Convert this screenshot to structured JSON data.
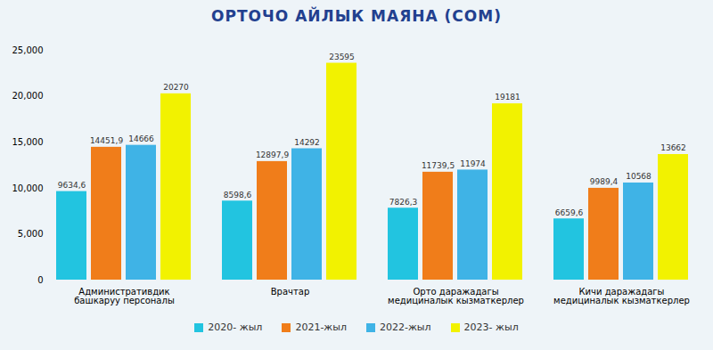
{
  "chart_data": {
    "type": "bar",
    "title": "ОРТОЧО АЙЛЫК МАЯНА (СОМ)",
    "categories": [
      "Административдик башкаруу персоналы",
      "Врачтар",
      "Орто даражадагы медициналык кызматкерлер",
      "Кичи даражадагы медициналык кызматкерлер"
    ],
    "series": [
      {
        "name": "2020- жыл",
        "color": "#22c4e0",
        "values": [
          9634.6,
          8598.6,
          7826.3,
          6659.6
        ],
        "value_labels": [
          "9634,6",
          "8598,6",
          "7826,3",
          "6659,6"
        ]
      },
      {
        "name": "2021-жыл",
        "color": "#f07d1a",
        "values": [
          14451.9,
          12897.9,
          11739.5,
          9989.4
        ],
        "value_labels": [
          "14451,9",
          "12897,9",
          "11739,5",
          "9989,4"
        ]
      },
      {
        "name": "2022-жыл",
        "color": "#3fb3e6",
        "values": [
          14666,
          14292,
          11974,
          10568
        ],
        "value_labels": [
          "14666",
          "14292",
          "11974",
          "10568"
        ]
      },
      {
        "name": "2023- жыл",
        "color": "#f2f200",
        "values": [
          20270,
          23595,
          19181,
          13662
        ],
        "value_labels": [
          "20270",
          "23595",
          "19181",
          "13662"
        ]
      }
    ],
    "ylim": [
      0,
      25000
    ],
    "yticks": [
      0,
      5000,
      10000,
      15000,
      20000,
      25000
    ],
    "grid": false,
    "legend": "bottom",
    "data_labels": true
  }
}
